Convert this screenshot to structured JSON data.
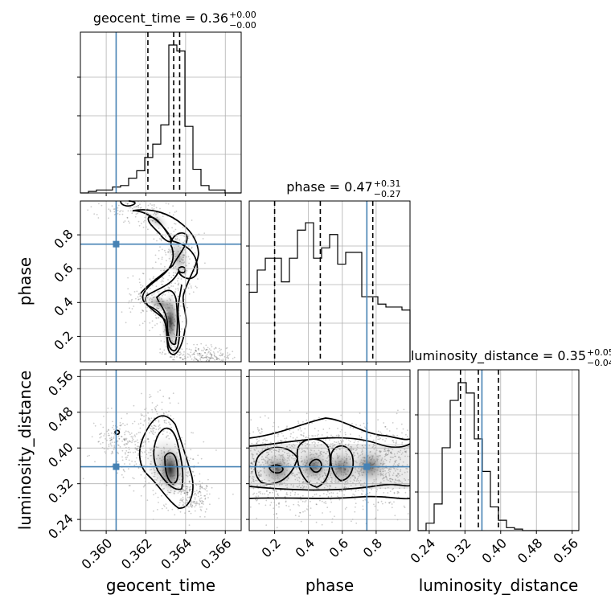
{
  "chart_data": {
    "type": "corner",
    "truth_color": "#4682b4",
    "parameters": [
      {
        "name": "geocent_time",
        "range": [
          0.3587,
          0.3668
        ],
        "ticks": [
          "0.360",
          "0.362",
          "0.364",
          "0.366"
        ],
        "tick_values": [
          0.36,
          0.362,
          0.364,
          0.366
        ],
        "truth": 0.3605,
        "quantiles": [
          0.3621,
          0.3634,
          0.3637
        ],
        "title": "geocent_time = 0.36",
        "title_plus": "+0.00",
        "title_minus": "−0.00",
        "hist": [
          0.0,
          0.01,
          0.02,
          0.02,
          0.04,
          0.05,
          0.1,
          0.15,
          0.24,
          0.33,
          0.46,
          1.0,
          0.96,
          0.45,
          0.16,
          0.05,
          0.02,
          0.02,
          0.0,
          0.0
        ]
      },
      {
        "name": "phase",
        "range": [
          0.05,
          1.0
        ],
        "ticks": [
          "0.2",
          "0.4",
          "0.6",
          "0.8"
        ],
        "tick_values": [
          0.2,
          0.4,
          0.6,
          0.8
        ],
        "truth": 0.745,
        "quantiles": [
          0.2,
          0.47,
          0.78
        ],
        "title": "phase = 0.47",
        "title_plus": "+0.31",
        "title_minus": "−0.27",
        "hist": [
          0.47,
          0.62,
          0.7,
          0.7,
          0.54,
          0.7,
          0.89,
          0.94,
          0.7,
          0.77,
          0.86,
          0.66,
          0.74,
          0.74,
          0.44,
          0.44,
          0.39,
          0.37,
          0.37,
          0.35
        ]
      },
      {
        "name": "luminosity_distance",
        "range": [
          0.215,
          0.575
        ],
        "ticks": [
          "0.24",
          "0.32",
          "0.40",
          "0.48",
          "0.56"
        ],
        "tick_values": [
          0.24,
          0.32,
          0.4,
          0.48,
          0.56
        ],
        "truth": 0.358,
        "quantiles": [
          0.31,
          0.35,
          0.395
        ],
        "title": "luminosity_distance = 0.35",
        "title_plus": "+0.05",
        "title_minus": "−0.04",
        "hist": [
          0.0,
          0.05,
          0.18,
          0.56,
          0.88,
          1.0,
          0.93,
          0.62,
          0.4,
          0.16,
          0.07,
          0.02,
          0.01,
          0.0,
          0.0,
          0.0,
          0.0,
          0.0,
          0.0,
          0.0
        ]
      }
    ],
    "grid": true
  }
}
